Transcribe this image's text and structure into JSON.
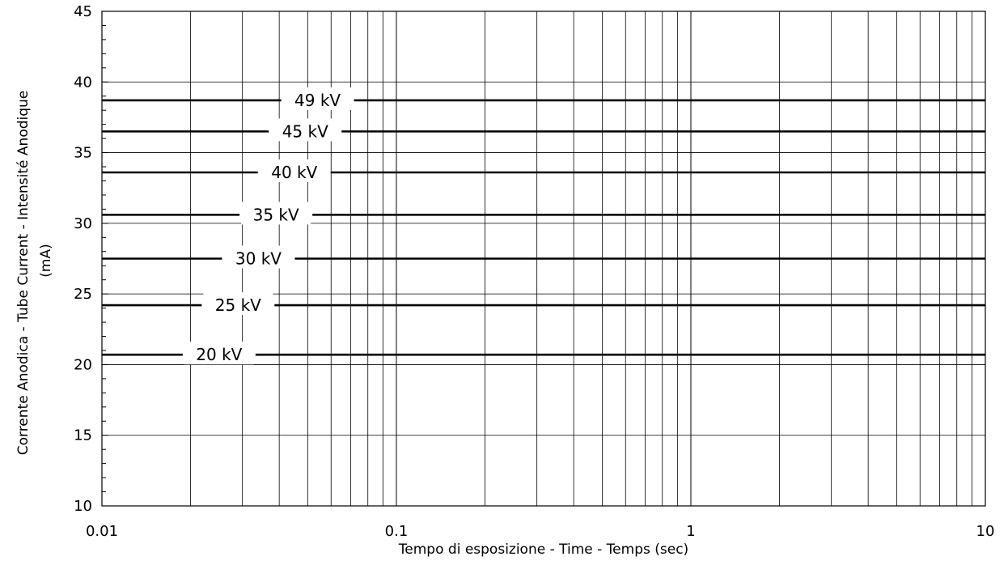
{
  "chart_data": {
    "type": "line",
    "xlabel": "Tempo di esposizione - Time - Temps  (sec)",
    "ylabel_line1": "Corrente Anodica - Tube Current - Intensité Anodique",
    "ylabel_line2": "(mA)",
    "x_scale": "log",
    "xlim": [
      0.01,
      10
    ],
    "ylim": [
      10,
      45
    ],
    "x_ticks": [
      "0.01",
      "0.1",
      "1",
      "10"
    ],
    "y_ticks": [
      "10",
      "15",
      "20",
      "25",
      "30",
      "35",
      "40",
      "45"
    ],
    "grid": true,
    "series": [
      {
        "name": "20 kV",
        "x": [
          0.01,
          10
        ],
        "y": [
          20.7,
          20.7
        ],
        "label_x": 0.025
      },
      {
        "name": "25 kV",
        "x": [
          0.01,
          10
        ],
        "y": [
          24.2,
          24.2
        ],
        "label_x": 0.029
      },
      {
        "name": "30 kV",
        "x": [
          0.01,
          10
        ],
        "y": [
          27.5,
          27.5
        ],
        "label_x": 0.034
      },
      {
        "name": "35 kV",
        "x": [
          0.01,
          10
        ],
        "y": [
          30.6,
          30.6
        ],
        "label_x": 0.039
      },
      {
        "name": "40 kV",
        "x": [
          0.01,
          10
        ],
        "y": [
          33.6,
          33.6
        ],
        "label_x": 0.045
      },
      {
        "name": "45 kV",
        "x": [
          0.01,
          10
        ],
        "y": [
          36.5,
          36.5
        ],
        "label_x": 0.049
      },
      {
        "name": "49 kV",
        "x": [
          0.01,
          10
        ],
        "y": [
          38.7,
          38.7
        ],
        "label_x": 0.054
      }
    ]
  }
}
